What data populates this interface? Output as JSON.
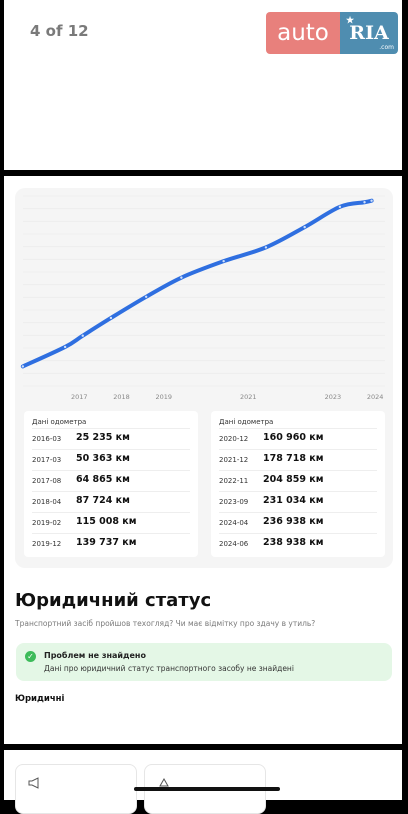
{
  "gallery": {
    "counter": "4 of 12"
  },
  "logo": {
    "left": "auto",
    "right": "RIA",
    "sub": ".com"
  },
  "chart_data": {
    "type": "line",
    "title": "",
    "xlabel": "",
    "ylabel": "",
    "x_ticks": [
      "2017",
      "2018",
      "2019",
      "2021",
      "2023",
      "2024"
    ],
    "series": [
      {
        "name": "",
        "points": [
          [
            "2016-03",
            25235
          ],
          [
            "2017-03",
            50363
          ],
          [
            "2017-08",
            64865
          ],
          [
            "2018-04",
            87724
          ],
          [
            "2019-02",
            115008
          ],
          [
            "2019-12",
            139737
          ],
          [
            "2020-12",
            160960
          ],
          [
            "2021-12",
            178718
          ],
          [
            "2022-11",
            204859
          ],
          [
            "2023-09",
            231034
          ],
          [
            "2024-04",
            236938
          ],
          [
            "2024-06",
            238938
          ]
        ]
      }
    ],
    "color": "#2f6fe0",
    "grid": true
  },
  "odometer": {
    "left_title": "Дані одометра",
    "right_title": "Дані одометра",
    "left": [
      {
        "date": "2016-03",
        "value": "25 235 км"
      },
      {
        "date": "2017-03",
        "value": "50 363 км"
      },
      {
        "date": "2017-08",
        "value": "64 865 км"
      },
      {
        "date": "2018-04",
        "value": "87 724 км"
      },
      {
        "date": "2019-02",
        "value": "115 008 км"
      },
      {
        "date": "2019-12",
        "value": "139 737 км"
      }
    ],
    "right": [
      {
        "date": "2020-12",
        "value": "160 960 км"
      },
      {
        "date": "2021-12",
        "value": "178 718 км"
      },
      {
        "date": "2022-11",
        "value": "204 859 км"
      },
      {
        "date": "2023-09",
        "value": "231 034 км"
      },
      {
        "date": "2024-04",
        "value": "236 938 км"
      },
      {
        "date": "2024-06",
        "value": "238 938 км"
      }
    ]
  },
  "legal": {
    "title": "Юридичний статус",
    "subtitle": "Транспортний засіб пройшов техогляд? Чи має відмітку про здачу в утиль?",
    "ok_title": "Проблем не знайдено",
    "ok_text": "Дані про юридичний статус транспортного засобу не знайдені",
    "section": "Юридичні"
  },
  "colors": {
    "accent": "#2f6fe0",
    "success_bg": "#e4f7e6",
    "success": "#3dbb5a"
  }
}
